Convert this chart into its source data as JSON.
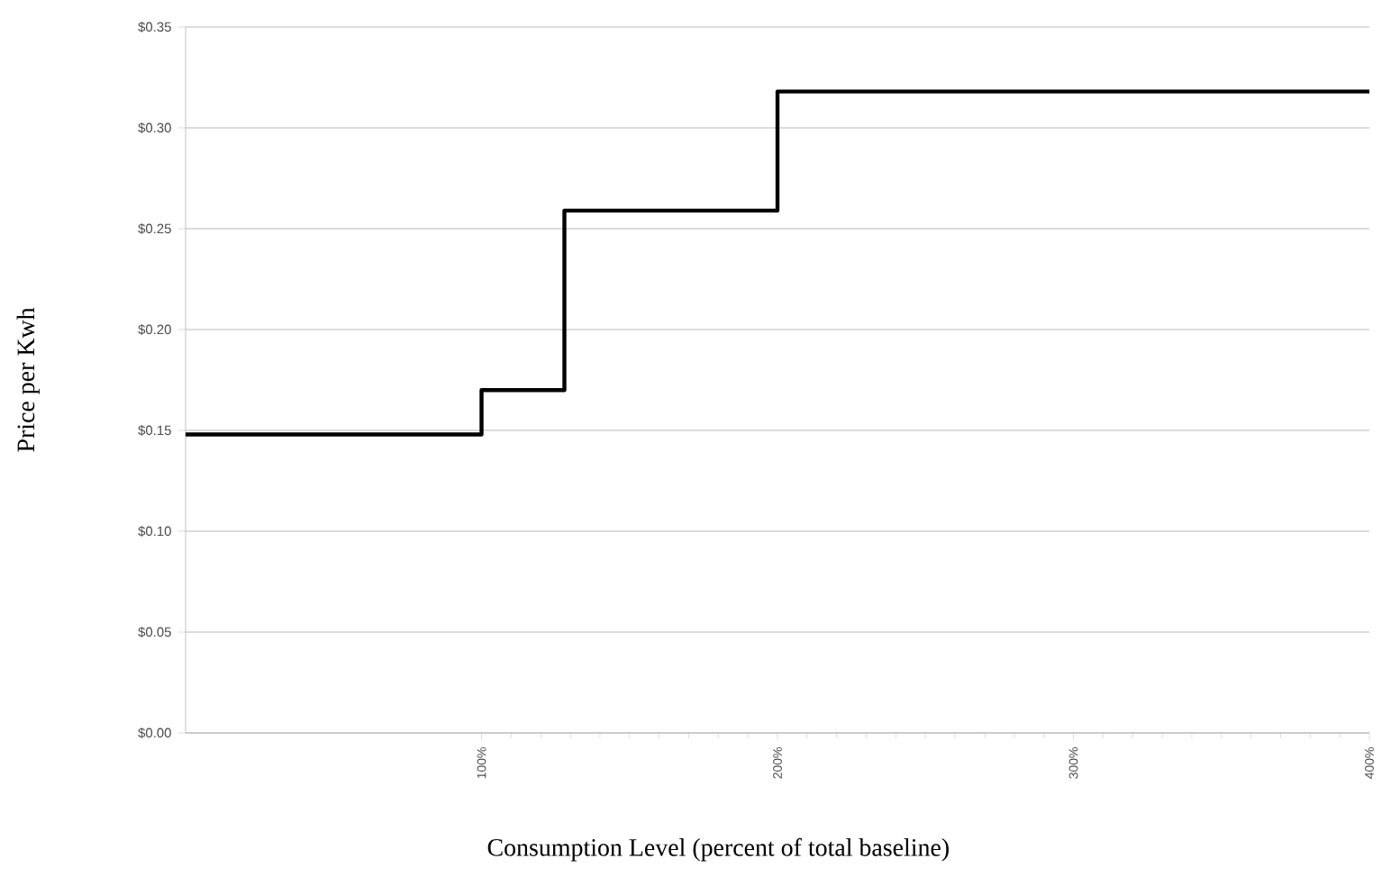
{
  "chart_data": {
    "type": "step",
    "xlabel": "Consumption Level (percent of total baseline)",
    "ylabel": "Price per Kwh",
    "x": [
      0,
      100,
      128,
      200,
      400
    ],
    "series": [
      {
        "color": "#000000",
        "values": [
          0.148,
          0.17,
          0.259,
          0.318,
          0.318
        ]
      }
    ],
    "xlim": [
      0,
      400
    ],
    "xticks": [
      {
        "value": 100,
        "label": "100%"
      },
      {
        "value": 200,
        "label": "200%"
      },
      {
        "value": 300,
        "label": "300%"
      },
      {
        "value": 400,
        "label": "400%"
      }
    ],
    "ylim": [
      0,
      0.35
    ],
    "yticks": [
      {
        "value": 0,
        "label": "$0.00"
      },
      {
        "value": 0.05,
        "label": "$0.05"
      },
      {
        "value": 0.1,
        "label": "$0.10"
      },
      {
        "value": 0.15,
        "label": "$0.15"
      },
      {
        "value": 0.2,
        "label": "$0.20"
      },
      {
        "value": 0.25,
        "label": "$0.25"
      },
      {
        "value": 0.3,
        "label": "$0.30"
      },
      {
        "value": 0.35,
        "label": "$0.35"
      }
    ],
    "grid": "y",
    "marker": "none",
    "line_style": "solid"
  }
}
